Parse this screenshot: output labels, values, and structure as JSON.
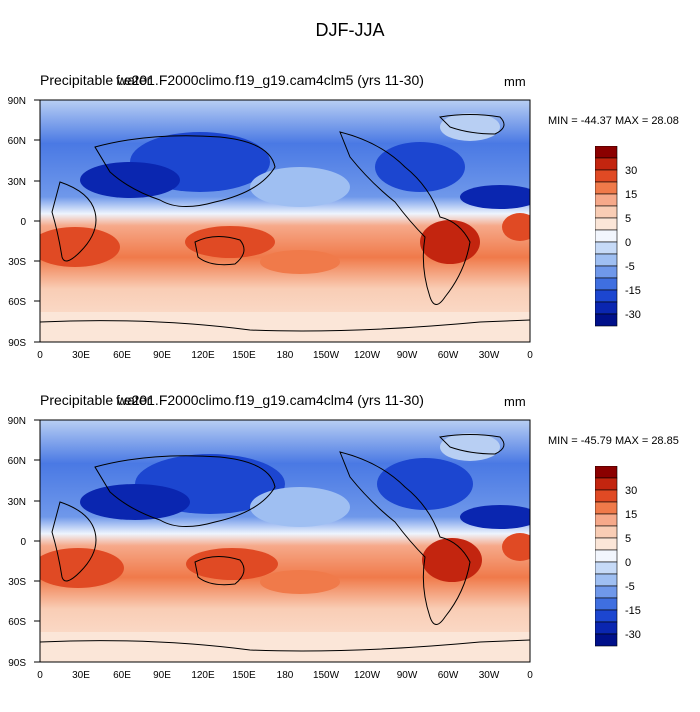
{
  "figure_title": "DJF-JJA",
  "panels": [
    {
      "title": "Precipitable water",
      "case_label": "f.e201.F2000climo.f19_g19.cam4clm5 (yrs 11-30)",
      "units": "mm",
      "minmax": "MIN = -44.37 MAX =  28.08"
    },
    {
      "title": "Precipitable water",
      "case_label": "f.e201.F2000climo.f19_g19.cam4clm4 (yrs 11-30)",
      "units": "mm",
      "minmax": "MIN = -45.79 MAX =  28.85"
    }
  ],
  "map": {
    "lat_ticks": [
      "90N",
      "60N",
      "30N",
      "0",
      "30S",
      "60S",
      "90S"
    ],
    "lon_ticks": [
      "0",
      "30E",
      "60E",
      "90E",
      "120E",
      "150E",
      "180",
      "150W",
      "120W",
      "90W",
      "60W",
      "30W",
      "0"
    ]
  },
  "colorbar": {
    "labels": [
      "30",
      "15",
      "5",
      "0",
      "-5",
      "-15",
      "-30"
    ],
    "colors": [
      "#8b0000",
      "#c3250f",
      "#e04a24",
      "#f07a4a",
      "#f6a98a",
      "#f9cdb5",
      "#fbe6d8",
      "#f2f6fd",
      "#c6daf7",
      "#9fbff2",
      "#6f98ea",
      "#3f6fe0",
      "#1c46d0",
      "#0a26b0",
      "#00108a"
    ]
  },
  "colors": {
    "positive": "#e0572f",
    "negative": "#2a5ee8",
    "land_line": "#000000"
  }
}
